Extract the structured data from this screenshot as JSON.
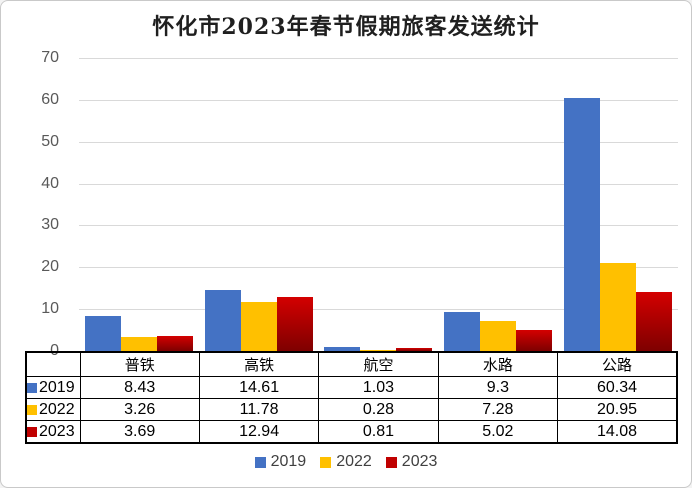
{
  "title": "怀化市2023年春节假期旅客发送统计",
  "colors": {
    "series_2019": "#4472C4",
    "series_2022": "#FFC000",
    "series_2023": "#C00000",
    "bar_2023_gradient_top": "#D40000",
    "bar_2023_gradient_bottom": "#7E0000",
    "gridline": "#D9D9D9",
    "axis_text": "#595959",
    "legend_text": "#404040",
    "table_border": "#000000"
  },
  "chart_data": {
    "type": "bar",
    "title": "怀化市2023年春节假期旅客发送统计",
    "categories": [
      "普铁",
      "高铁",
      "航空",
      "水路",
      "公路"
    ],
    "series": [
      {
        "name": "2019",
        "color": "#4472C4",
        "values": [
          8.43,
          14.61,
          1.03,
          9.3,
          60.34
        ]
      },
      {
        "name": "2022",
        "color": "#FFC000",
        "values": [
          3.26,
          11.78,
          0.28,
          7.28,
          20.95
        ]
      },
      {
        "name": "2023",
        "color": "#C00000",
        "gradient": [
          "#D40000",
          "#7E0000"
        ],
        "values": [
          3.69,
          12.94,
          0.81,
          5.02,
          14.08
        ]
      }
    ],
    "xlabel": "",
    "ylabel": "",
    "ylim": [
      0,
      70
    ],
    "yticks": [
      0,
      10,
      20,
      30,
      40,
      50,
      60,
      70
    ],
    "grid": true,
    "legend_position": "bottom",
    "data_table_with_legend_keys": true
  }
}
